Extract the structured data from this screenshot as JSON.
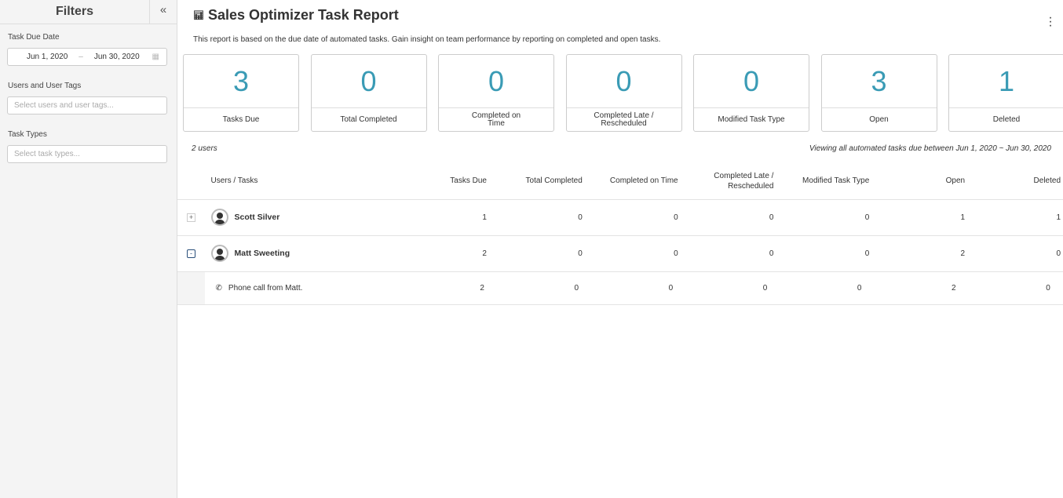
{
  "sidebar": {
    "title": "Filters",
    "collapse_icon": "double-chevron-left",
    "task_due_date_label": "Task Due Date",
    "date_start": "Jun 1, 2020",
    "date_sep": "–",
    "date_end": "Jun 30, 2020",
    "users_label": "Users and User Tags",
    "users_placeholder": "Select users and user tags...",
    "task_types_label": "Task Types",
    "task_types_placeholder": "Select task types..."
  },
  "header": {
    "title": "Sales Optimizer Task Report",
    "description": "This report is based on the due date of automated tasks. Gain insight on team performance by reporting on completed and open tasks."
  },
  "cards": [
    {
      "value": "3",
      "label": "Tasks Due"
    },
    {
      "value": "0",
      "label": "Total Completed"
    },
    {
      "value": "0",
      "label": "Completed on Time"
    },
    {
      "value": "0",
      "label": "Completed Late / Rescheduled"
    },
    {
      "value": "0",
      "label": "Modified Task Type"
    },
    {
      "value": "3",
      "label": "Open"
    },
    {
      "value": "1",
      "label": "Deleted"
    }
  ],
  "summary": {
    "users_count": "2 users",
    "viewing": "Viewing all automated tasks due between Jun 1, 2020 ~ Jun 30, 2020"
  },
  "table": {
    "headers": [
      "Users / Tasks",
      "Tasks Due",
      "Total Completed",
      "Completed on Time",
      "Completed Late / Rescheduled",
      "Modified Task Type",
      "Open",
      "Deleted"
    ],
    "rows": [
      {
        "name": "Scott Silver",
        "expand": "+",
        "values": [
          "1",
          "0",
          "0",
          "0",
          "0",
          "1",
          "1"
        ]
      },
      {
        "name": "Matt Sweeting",
        "expand": "-",
        "values": [
          "2",
          "0",
          "0",
          "0",
          "0",
          "2",
          "0"
        ],
        "tasks": [
          {
            "name": "Phone call from Matt.",
            "icon": "phone",
            "values": [
              "2",
              "0",
              "0",
              "0",
              "0",
              "2",
              "0"
            ]
          }
        ]
      }
    ]
  },
  "colors": {
    "accent": "#3a9bb5"
  }
}
